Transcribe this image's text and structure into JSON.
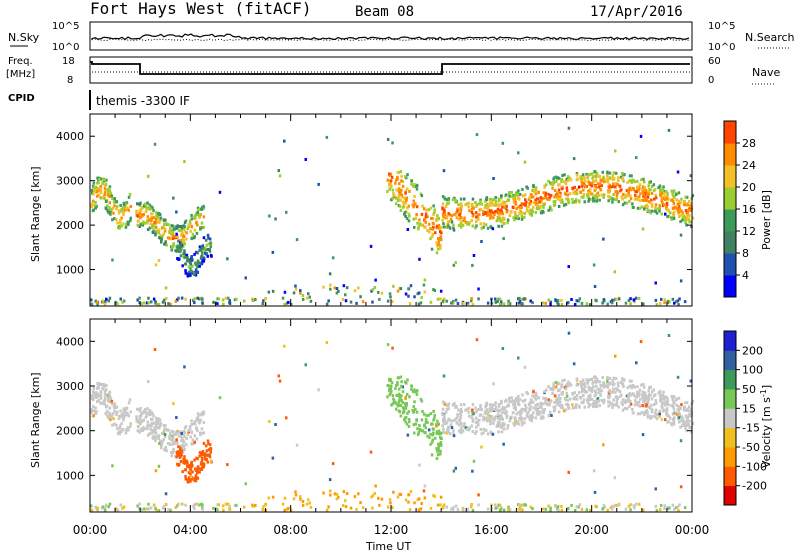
{
  "header": {
    "station": "Fort Hays West (fitACF)",
    "beam": "Beam 08",
    "date": "17/Apr/2016"
  },
  "noise_panel": {
    "left_label": "N.Sky",
    "right_label": "N.Search",
    "left_ticks": [
      "10^5",
      "10^0"
    ],
    "right_ticks": [
      "10^5",
      "10^0"
    ]
  },
  "freq_panel": {
    "left_label_1": "Freq.",
    "left_label_2": "[MHz]",
    "left_ticks": [
      "18",
      "8"
    ],
    "right_label": "Nave",
    "right_ticks": [
      "60",
      "0"
    ]
  },
  "cpid_panel": {
    "label": "CPID",
    "text": "themis -3300 IF"
  },
  "colors": {
    "power": [
      "#0000ff",
      "#2050b0",
      "#3f8060",
      "#3e9a5a",
      "#9acd32",
      "#f2c029",
      "#ff8c00",
      "#ff4500",
      "#e00000"
    ],
    "velocity": [
      "#e00000",
      "#ff5a00",
      "#ff9a00",
      "#f0c020",
      "#c8c8c8",
      "#78c858",
      "#3f9a5a",
      "#3060a0",
      "#2020d0"
    ]
  },
  "chart_data": [
    {
      "type": "heatmap",
      "title": "Power",
      "ylabel": "Slant Range [km]",
      "xlabel": "Time UT",
      "xlim": [
        "00:00",
        "24:00"
      ],
      "ylim": [
        180,
        4500
      ],
      "x_ticks": [
        "00:00",
        "04:00",
        "08:00",
        "12:00",
        "16:00",
        "20:00",
        "00:00"
      ],
      "y_ticks": [
        1000,
        2000,
        3000,
        4000
      ],
      "colorbar_label": "Power [dB]",
      "colorbar_ticks": [
        4,
        8,
        12,
        16,
        20,
        24,
        28
      ],
      "regions": [
        {
          "t0": 0.0,
          "t1": 1.6,
          "r0": 1850,
          "r1": 3100,
          "peak_db": 26
        },
        {
          "t0": 1.8,
          "t1": 4.5,
          "r0": 1400,
          "r1": 2500,
          "peak_db": 26
        },
        {
          "t0": 3.4,
          "t1": 4.8,
          "r0": 800,
          "r1": 1800,
          "peak_db": 18
        },
        {
          "t0": 11.8,
          "t1": 14.0,
          "r0": 1300,
          "r1": 3200,
          "peak_db": 28
        },
        {
          "t0": 14.0,
          "t1": 24.0,
          "r0": 1900,
          "r1": 3200,
          "peak_db": 28
        }
      ]
    },
    {
      "type": "heatmap",
      "title": "Velocity",
      "ylabel": "Slant Range [km]",
      "xlabel": "Time UT",
      "xlim": [
        "00:00",
        "24:00"
      ],
      "ylim": [
        180,
        4500
      ],
      "x_ticks": [
        "00:00",
        "04:00",
        "08:00",
        "12:00",
        "16:00",
        "20:00",
        "00:00"
      ],
      "y_ticks": [
        1000,
        2000,
        3000,
        4000
      ],
      "colorbar_label": "Velocity [m s^-1]",
      "colorbar_ticks": [
        -200,
        -100,
        -50,
        -15,
        15,
        50,
        100,
        200
      ],
      "regions": [
        {
          "t0": 0.0,
          "t1": 1.6,
          "r0": 1850,
          "r1": 3100,
          "velocity": 0
        },
        {
          "t0": 1.8,
          "t1": 4.5,
          "r0": 1400,
          "r1": 2500,
          "velocity": 0
        },
        {
          "t0": 3.4,
          "t1": 4.8,
          "r0": 800,
          "r1": 1800,
          "velocity": -150
        },
        {
          "t0": 11.8,
          "t1": 14.0,
          "r0": 1300,
          "r1": 3200,
          "velocity": 40
        },
        {
          "t0": 14.0,
          "t1": 24.0,
          "r0": 1900,
          "r1": 3200,
          "velocity": 0
        }
      ]
    }
  ]
}
